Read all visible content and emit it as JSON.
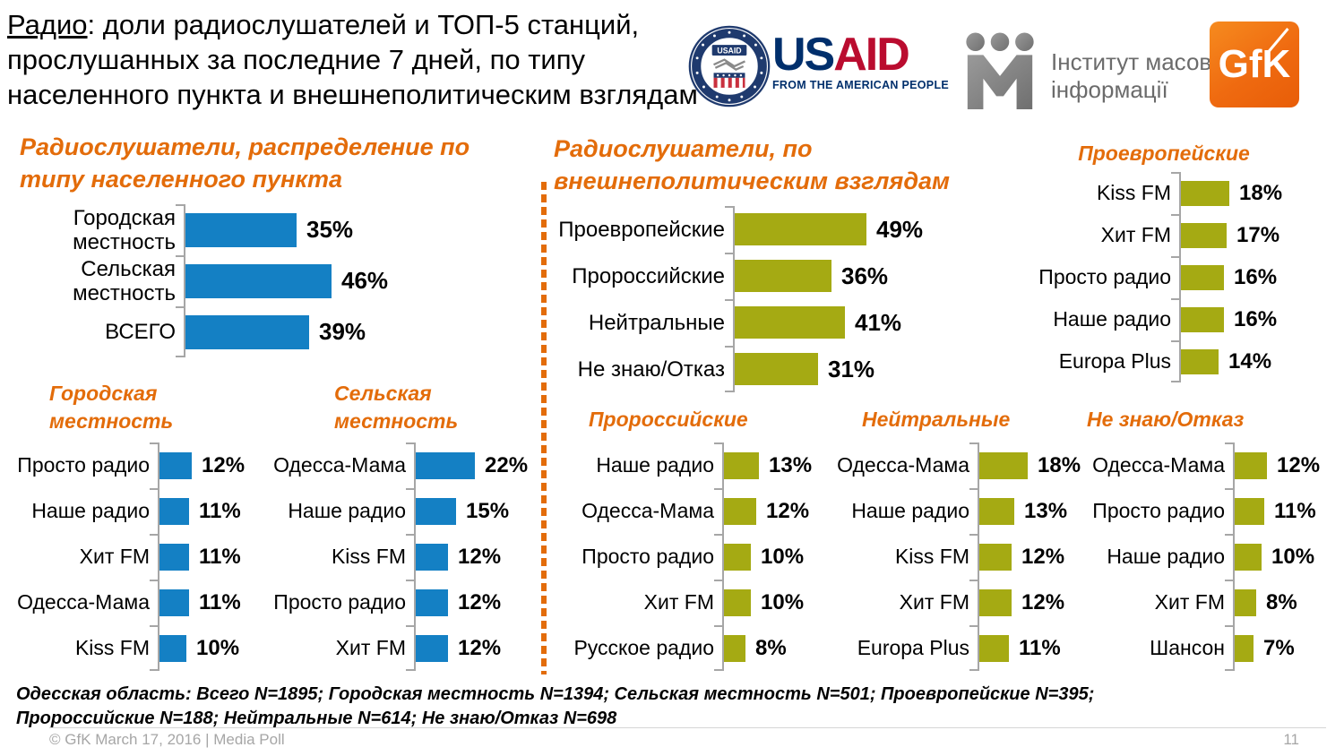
{
  "header": {
    "title_underlined": "Радио",
    "title_rest": ": доли радиослушателей и ТОП-5 станций, прослушанных за последние 7 дней, по типу населенного пункта и внешнеполитическим взглядам"
  },
  "logos": {
    "usaid_us": "US",
    "usaid_aid": "AID",
    "usaid_tagline": "FROM THE AMERICAN PEOPLE",
    "imi_name": "Інститут масової\nінформації",
    "gfk": "GfK"
  },
  "colors": {
    "blue_bar": "#1480c4",
    "green_bar": "#a5aa13",
    "title_orange": "#e36c0a",
    "axis_gray": "#a6a6a6",
    "usaid_navy": "#002f6c",
    "usaid_red": "#ba0c2f",
    "gfk_orange": "#ef6a10"
  },
  "chart_data": [
    {
      "id": "urban_rural",
      "type": "bar",
      "orientation": "horizontal",
      "title": "Радиослушатели, распределение по\nтипу населенного пункта",
      "categories": [
        "Городская местность",
        "Сельская местность",
        "ВСЕГО"
      ],
      "values": [
        35,
        46,
        39
      ],
      "unit": "%",
      "bar_color": "#1480c4",
      "xlim": [
        0,
        100
      ],
      "grid": false,
      "legend": false
    },
    {
      "id": "views",
      "type": "bar",
      "orientation": "horizontal",
      "title": "Радиослушатели, по\nвнешнеполитическим взглядам",
      "categories": [
        "Проевропейские",
        "Пророссийские",
        "Нейтральные",
        "Не знаю/Отказ"
      ],
      "values": [
        49,
        36,
        41,
        31
      ],
      "unit": "%",
      "bar_color": "#a5aa13",
      "xlim": [
        0,
        100
      ],
      "grid": false,
      "legend": false
    },
    {
      "id": "pro_european",
      "type": "bar",
      "orientation": "horizontal",
      "title": "Проевропейские",
      "categories": [
        "Kiss FM",
        "Хит FM",
        "Просто радио",
        "Наше радио",
        "Europa Plus"
      ],
      "values": [
        18,
        17,
        16,
        16,
        14
      ],
      "unit": "%",
      "bar_color": "#a5aa13",
      "xlim": [
        0,
        100
      ],
      "grid": false,
      "legend": false
    },
    {
      "id": "urban_top5",
      "type": "bar",
      "orientation": "horizontal",
      "title": "Городская\nместность",
      "categories": [
        "Просто радио",
        "Наше радио",
        "Хит FM",
        "Одесса-Мама",
        "Kiss FM"
      ],
      "values": [
        12,
        11,
        11,
        11,
        10
      ],
      "unit": "%",
      "bar_color": "#1480c4",
      "xlim": [
        0,
        100
      ],
      "grid": false,
      "legend": false
    },
    {
      "id": "rural_top5",
      "type": "bar",
      "orientation": "horizontal",
      "title": "Сельская\nместность",
      "categories": [
        "Одесса-Мама",
        "Наше радио",
        "Kiss FM",
        "Просто радио",
        "Хит FM"
      ],
      "values": [
        22,
        15,
        12,
        12,
        12
      ],
      "unit": "%",
      "bar_color": "#1480c4",
      "xlim": [
        0,
        100
      ],
      "grid": false,
      "legend": false
    },
    {
      "id": "pro_russian",
      "type": "bar",
      "orientation": "horizontal",
      "title": "Пророссийские",
      "categories": [
        "Наше радио",
        "Одесса-Мама",
        "Просто радио",
        "Хит FM",
        "Русское радио"
      ],
      "values": [
        13,
        12,
        10,
        10,
        8
      ],
      "unit": "%",
      "bar_color": "#a5aa13",
      "xlim": [
        0,
        100
      ],
      "grid": false,
      "legend": false
    },
    {
      "id": "neutral",
      "type": "bar",
      "orientation": "horizontal",
      "title": "Нейтральные",
      "categories": [
        "Одесса-Мама",
        "Наше радио",
        "Kiss FM",
        "Хит FM",
        "Europa Plus"
      ],
      "values": [
        18,
        13,
        12,
        12,
        11
      ],
      "unit": "%",
      "bar_color": "#a5aa13",
      "xlim": [
        0,
        100
      ],
      "grid": false,
      "legend": false
    },
    {
      "id": "dont_know",
      "type": "bar",
      "orientation": "horizontal",
      "title": "Не знаю/Отказ",
      "categories": [
        "Одесса-Мама",
        "Просто радио",
        "Наше радио",
        "Хит FM",
        "Шансон"
      ],
      "values": [
        12,
        11,
        10,
        8,
        7
      ],
      "unit": "%",
      "bar_color": "#a5aa13",
      "xlim": [
        0,
        100
      ],
      "grid": false,
      "legend": false
    }
  ],
  "footnote": "Одесская область: Всего N=1895; Городская местность N=1394; Сельская местность N=501; Проевропейские N=395;\nПророссийские N=188; Нейтральные N=614; Не знаю/Отказ N=698",
  "footer": {
    "copyright": "© GfK March 17, 2016 | Media Poll",
    "page_number": "11"
  }
}
